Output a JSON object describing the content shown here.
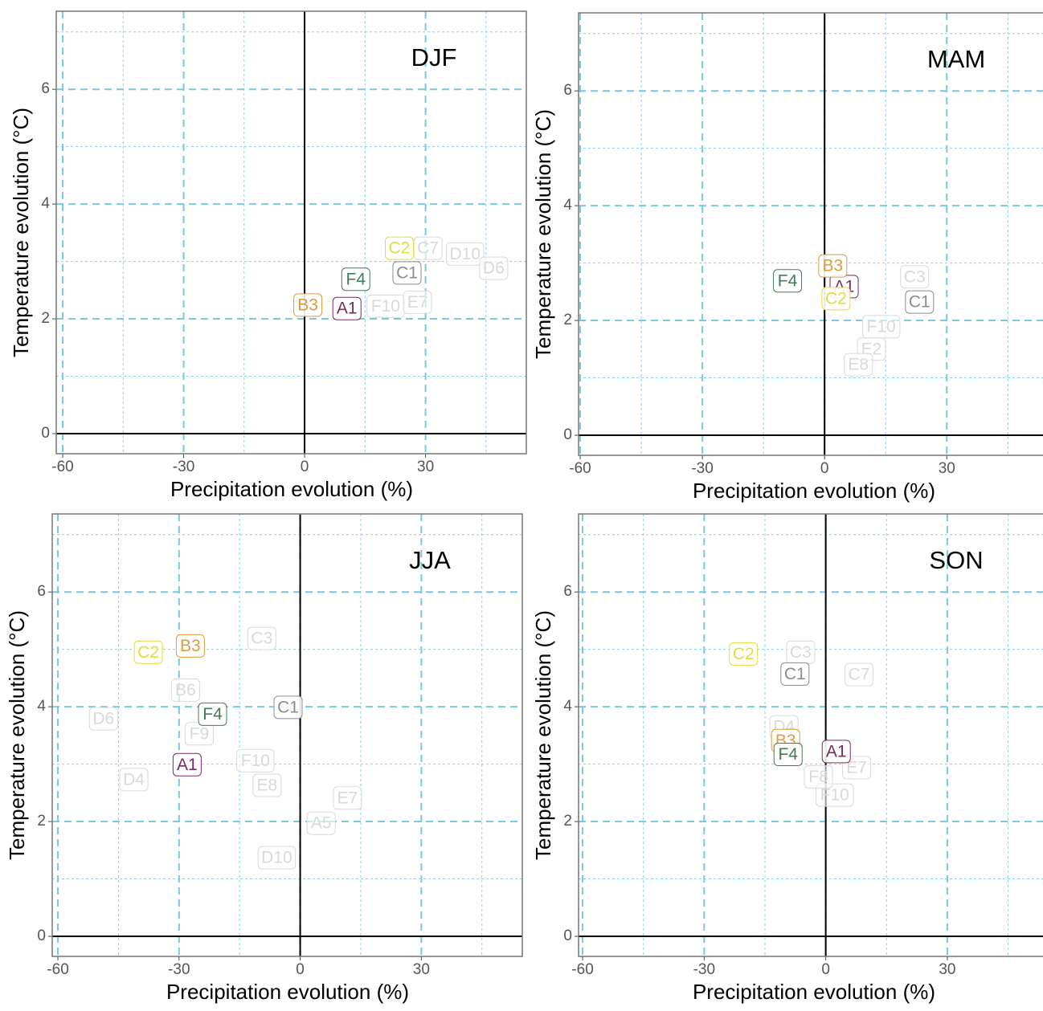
{
  "chart_data": [
    {
      "type": "scatter",
      "title": "DJF",
      "x_label": "Precipitation evolution (%)",
      "y_label": "Temperature evolution (°C)",
      "xlim": [
        -61.6,
        55
      ],
      "ylim": [
        -0.35,
        7.36
      ],
      "xticks": [
        -60,
        -30,
        0,
        30
      ],
      "yticks": [
        0,
        2,
        4,
        6
      ],
      "xminor": [
        -45,
        -15,
        15,
        45
      ],
      "yminor": [
        1,
        3,
        5,
        7
      ],
      "points": [
        {
          "label": "D10",
          "x": 39.8,
          "y": 3.13,
          "color": "#d9d9d9"
        },
        {
          "label": "D6",
          "x": 46.9,
          "y": 2.88,
          "color": "#d9d9d9"
        },
        {
          "label": "C7",
          "x": 30.6,
          "y": 3.23,
          "color": "#d9d9d9"
        },
        {
          "label": "F10",
          "x": 20.1,
          "y": 2.22,
          "color": "#d9d9d9"
        },
        {
          "label": "E7",
          "x": 28,
          "y": 2.29,
          "color": "#d9d9d9"
        },
        {
          "label": "C2",
          "x": 23.5,
          "y": 3.23,
          "color": "#e3dc3a"
        },
        {
          "label": "C1",
          "x": 25.4,
          "y": 2.8,
          "color": "#8c8c8c"
        },
        {
          "label": "F4",
          "x": 12.7,
          "y": 2.69,
          "color": "#3f7d55"
        },
        {
          "label": "B3",
          "x": 0.8,
          "y": 2.24,
          "color": "#dd9b3c"
        },
        {
          "label": "A1",
          "x": 10.5,
          "y": 2.18,
          "color": "#7a2a5c"
        }
      ]
    },
    {
      "type": "scatter",
      "title": "MAM",
      "x_label": "Precipitation evolution (%)",
      "y_label": "Temperature evolution (°C)",
      "xlim": [
        -60.4,
        55
      ],
      "ylim": [
        -0.35,
        7.36
      ],
      "xticks": [
        -60,
        -30,
        0,
        30
      ],
      "yticks": [
        0,
        2,
        4,
        6
      ],
      "xminor": [
        -45,
        -15,
        15,
        45
      ],
      "yminor": [
        1,
        3,
        5,
        7
      ],
      "points": [
        {
          "label": "C3",
          "x": 22.1,
          "y": 2.76,
          "color": "#d9d9d9"
        },
        {
          "label": "F10",
          "x": 13.9,
          "y": 1.89,
          "color": "#d9d9d9"
        },
        {
          "label": "E2",
          "x": 11.5,
          "y": 1.5,
          "color": "#d9d9d9"
        },
        {
          "label": "E8",
          "x": 8.3,
          "y": 1.23,
          "color": "#d9d9d9"
        },
        {
          "label": "A1",
          "x": 4.8,
          "y": 2.59,
          "color": "#7a2a5c"
        },
        {
          "label": "B3",
          "x": 2,
          "y": 2.95,
          "color": "#dd9b3c"
        },
        {
          "label": "F4",
          "x": -9.1,
          "y": 2.69,
          "color": "#3f7d55"
        },
        {
          "label": "C2",
          "x": 2.8,
          "y": 2.38,
          "color": "#e3dc3a"
        },
        {
          "label": "C1",
          "x": 23.3,
          "y": 2.32,
          "color": "#8c8c8c"
        }
      ]
    },
    {
      "type": "scatter",
      "title": "JJA",
      "x_label": "Precipitation evolution (%)",
      "y_label": "Temperature evolution (°C)",
      "xlim": [
        -61.4,
        55
      ],
      "ylim": [
        -0.35,
        7.36
      ],
      "xticks": [
        -60,
        -30,
        0,
        30
      ],
      "yticks": [
        0,
        2,
        4,
        6
      ],
      "xminor": [
        -45,
        -15,
        15,
        45
      ],
      "yminor": [
        1,
        3,
        5,
        7
      ],
      "points": [
        {
          "label": "C3",
          "x": -9.5,
          "y": 5.19,
          "color": "#d9d9d9"
        },
        {
          "label": "B6",
          "x": -28.4,
          "y": 4.29,
          "color": "#d9d9d9"
        },
        {
          "label": "D6",
          "x": -48.7,
          "y": 3.79,
          "color": "#d9d9d9"
        },
        {
          "label": "F9",
          "x": -25,
          "y": 3.53,
          "color": "#d9d9d9"
        },
        {
          "label": "D4",
          "x": -41.2,
          "y": 2.73,
          "color": "#d9d9d9"
        },
        {
          "label": "F10",
          "x": -11.1,
          "y": 3.06,
          "color": "#d9d9d9"
        },
        {
          "label": "E8",
          "x": -8.2,
          "y": 2.63,
          "color": "#d9d9d9"
        },
        {
          "label": "E7",
          "x": 11.7,
          "y": 2.41,
          "color": "#d9d9d9"
        },
        {
          "label": "A5",
          "x": 5.2,
          "y": 1.97,
          "color": "#d9d9d9"
        },
        {
          "label": "D10",
          "x": -5.8,
          "y": 1.37,
          "color": "#d9d9d9"
        },
        {
          "label": "C2",
          "x": -37.6,
          "y": 4.95,
          "color": "#e3dc3a"
        },
        {
          "label": "B3",
          "x": -27.2,
          "y": 5.06,
          "color": "#dd9b3c"
        },
        {
          "label": "F4",
          "x": -21.7,
          "y": 3.87,
          "color": "#3f7d55"
        },
        {
          "label": "C1",
          "x": -3,
          "y": 3.99,
          "color": "#8c8c8c"
        },
        {
          "label": "A1",
          "x": -28,
          "y": 2.99,
          "color": "#7a2a5c"
        }
      ]
    },
    {
      "type": "scatter",
      "title": "SON",
      "x_label": "Precipitation evolution (%)",
      "y_label": "Temperature evolution (°C)",
      "xlim": [
        -61,
        55
      ],
      "ylim": [
        -0.35,
        7.36
      ],
      "xticks": [
        -60,
        -30,
        0,
        30
      ],
      "yticks": [
        0,
        2,
        4,
        6
      ],
      "xminor": [
        -45,
        -15,
        15,
        45
      ],
      "yminor": [
        1,
        3,
        5,
        7
      ],
      "points": [
        {
          "label": "C3",
          "x": -6.2,
          "y": 4.95,
          "color": "#d9d9d9"
        },
        {
          "label": "C7",
          "x": 8.2,
          "y": 4.56,
          "color": "#d9d9d9"
        },
        {
          "label": "D4",
          "x": -10.3,
          "y": 3.65,
          "color": "#d9d9d9"
        },
        {
          "label": "F10",
          "x": 2.2,
          "y": 2.46,
          "color": "#d9d9d9"
        },
        {
          "label": "E7",
          "x": 7.6,
          "y": 2.94,
          "color": "#d9d9d9"
        },
        {
          "label": "F8",
          "x": -1.8,
          "y": 2.78,
          "color": "#d9d9d9"
        },
        {
          "label": "C2",
          "x": -20.3,
          "y": 4.92,
          "color": "#e3dc3a"
        },
        {
          "label": "C1",
          "x": -7.6,
          "y": 4.57,
          "color": "#8c8c8c"
        },
        {
          "label": "B3",
          "x": -9.9,
          "y": 3.41,
          "color": "#dd9b3c"
        },
        {
          "label": "F4",
          "x": -9.3,
          "y": 3.17,
          "color": "#3f7d55"
        },
        {
          "label": "A1",
          "x": 2.6,
          "y": 3.22,
          "color": "#7a2a5c"
        }
      ]
    }
  ]
}
